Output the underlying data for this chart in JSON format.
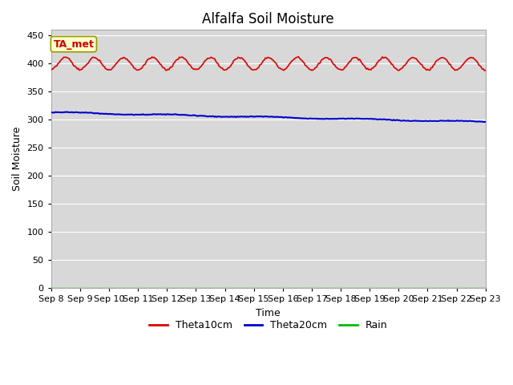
{
  "title": "Alfalfa Soil Moisture",
  "xlabel": "Time",
  "ylabel": "Soil Moisture",
  "ylim": [
    0,
    460
  ],
  "yticks": [
    0,
    50,
    100,
    150,
    200,
    250,
    300,
    350,
    400,
    450
  ],
  "x_labels": [
    "Sep 8",
    "Sep 9",
    "Sep 10",
    "Sep 11",
    "Sep 12",
    "Sep 13",
    "Sep 14",
    "Sep 15",
    "Sep 16",
    "Sep 17",
    "Sep 18",
    "Sep 19",
    "Sep 20",
    "Sep 21",
    "Sep 22",
    "Sep 23"
  ],
  "annotation_text": "TA_met",
  "annotation_bg": "#ffffcc",
  "annotation_border": "#999900",
  "theta10_color": "#dd0000",
  "theta20_color": "#0000cc",
  "rain_color": "#00bb00",
  "legend_labels": [
    "Theta10cm",
    "Theta20cm",
    "Rain"
  ],
  "background_color": "#d8d8d8",
  "figure_bg": "#ffffff",
  "title_fontsize": 12,
  "axis_label_fontsize": 9,
  "tick_fontsize": 8
}
